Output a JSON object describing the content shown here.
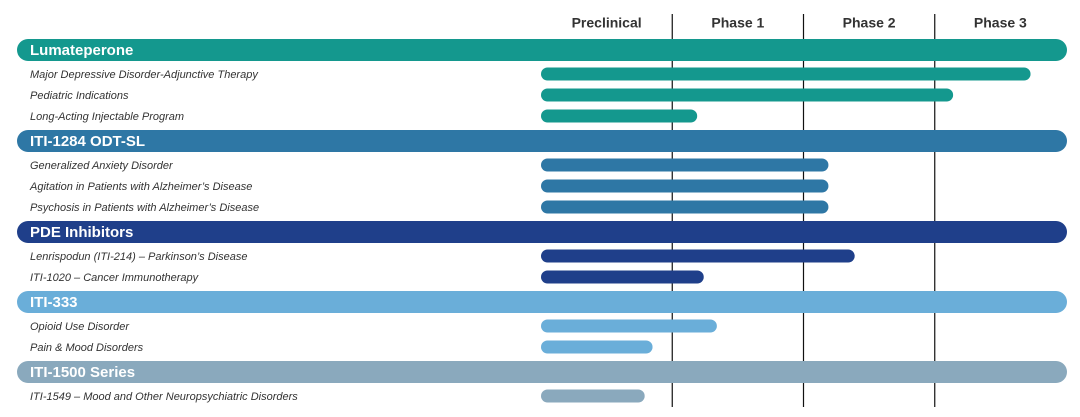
{
  "chart_data": {
    "type": "pipeline",
    "stages": [
      "Preclinical",
      "Phase 1",
      "Phase 2",
      "Phase 3"
    ],
    "xlim": [
      0,
      4
    ],
    "groups": [
      {
        "name": "Lumateperone",
        "color": "#14988e",
        "categories": [
          "Major Depressive Disorder-Adjunctive Therapy",
          "Pediatric Indications",
          "Long-Acting Injectable Program"
        ],
        "values": [
          3.73,
          3.14,
          1.19
        ]
      },
      {
        "name": "ITI-1284 ODT-SL",
        "color": "#2e77a5",
        "categories": [
          "Generalized Anxiety Disorder",
          "Agitation in Patients with Alzheimer’s Disease",
          "Psychosis in Patients with Alzheimer’s Disease"
        ],
        "values": [
          2.19,
          2.19,
          2.19
        ]
      },
      {
        "name": "PDE Inhibitors",
        "color": "#1f3f8a",
        "categories": [
          "Lenrispodun (ITI-214) – Parkinson’s Disease",
          "ITI-1020 – Cancer Immunotherapy"
        ],
        "values": [
          2.39,
          1.24
        ]
      },
      {
        "name": "ITI-333",
        "color": "#6aaed9",
        "categories": [
          "Opioid Use Disorder",
          "Pain & Mood Disorders"
        ],
        "values": [
          1.34,
          0.85
        ]
      },
      {
        "name": "ITI-1500 Series",
        "color": "#8aa9bd",
        "categories": [
          "ITI-1549 – Mood and Other Neuropsychiatric Disorders"
        ],
        "values": [
          0.79
        ]
      }
    ]
  }
}
